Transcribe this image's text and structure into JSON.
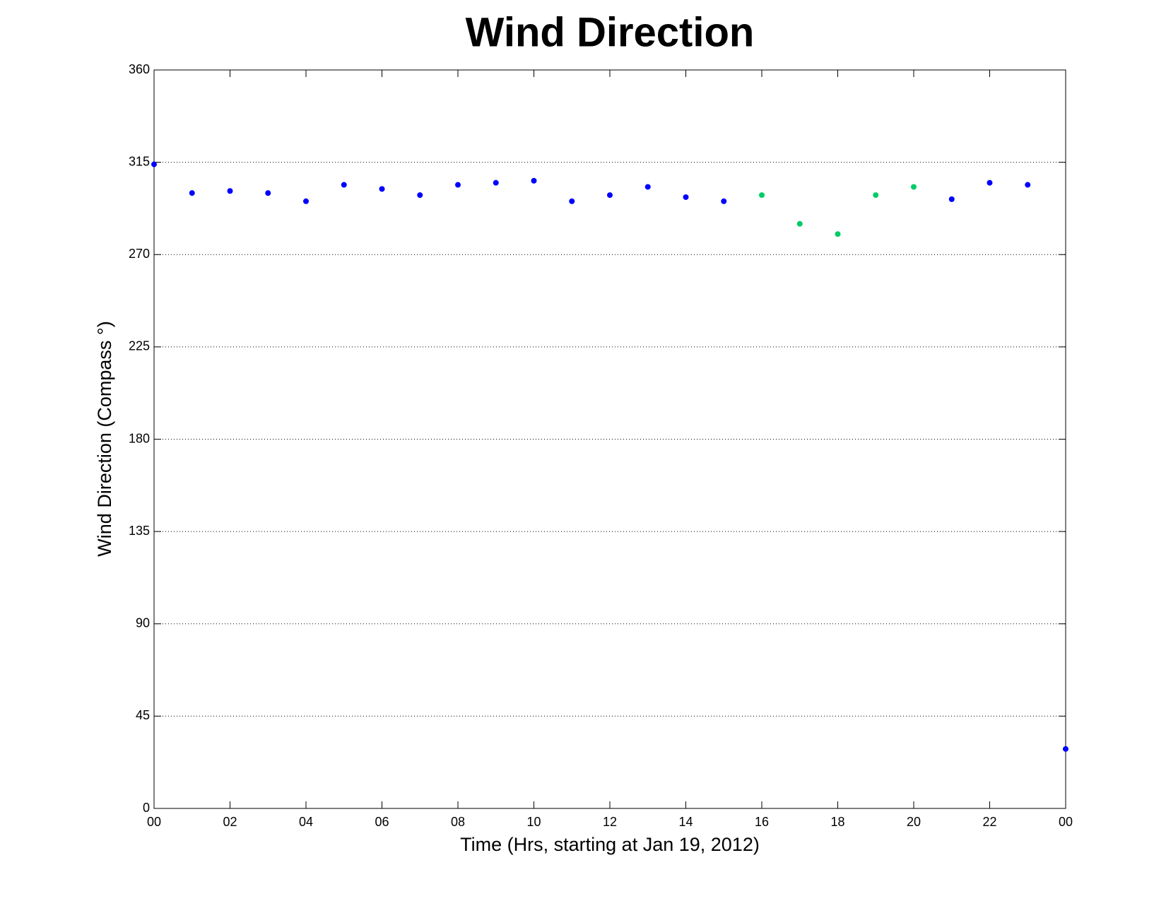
{
  "chart_data": {
    "type": "scatter",
    "title": "Wind Direction",
    "xlabel": "Time (Hrs, starting at Jan 19, 2012)",
    "ylabel": "Wind Direction (Compass °)",
    "xlim": [
      0,
      24
    ],
    "ylim": [
      0,
      360
    ],
    "xticks": [
      {
        "value": 0,
        "label": "00"
      },
      {
        "value": 2,
        "label": "02"
      },
      {
        "value": 4,
        "label": "04"
      },
      {
        "value": 6,
        "label": "06"
      },
      {
        "value": 8,
        "label": "08"
      },
      10,
      12,
      14,
      16,
      18,
      20,
      22,
      {
        "value": 24,
        "label": "00"
      }
    ],
    "yticks": [
      0,
      45,
      90,
      135,
      180,
      225,
      270,
      315,
      360
    ],
    "grid": true,
    "series": [
      {
        "color": "#0000ff",
        "x": [
          0,
          1,
          2,
          3,
          4,
          5,
          6,
          7,
          8,
          9,
          10,
          11,
          12,
          13,
          14,
          15,
          21,
          22,
          23,
          24
        ],
        "values": [
          314,
          300,
          301,
          300,
          296,
          304,
          302,
          299,
          304,
          305,
          306,
          296,
          299,
          303,
          298,
          296,
          297,
          305,
          304,
          29
        ]
      },
      {
        "color": "#00cc66",
        "x": [
          16,
          17,
          18,
          19,
          20
        ],
        "values": [
          299,
          285,
          280,
          299,
          303
        ]
      }
    ]
  }
}
